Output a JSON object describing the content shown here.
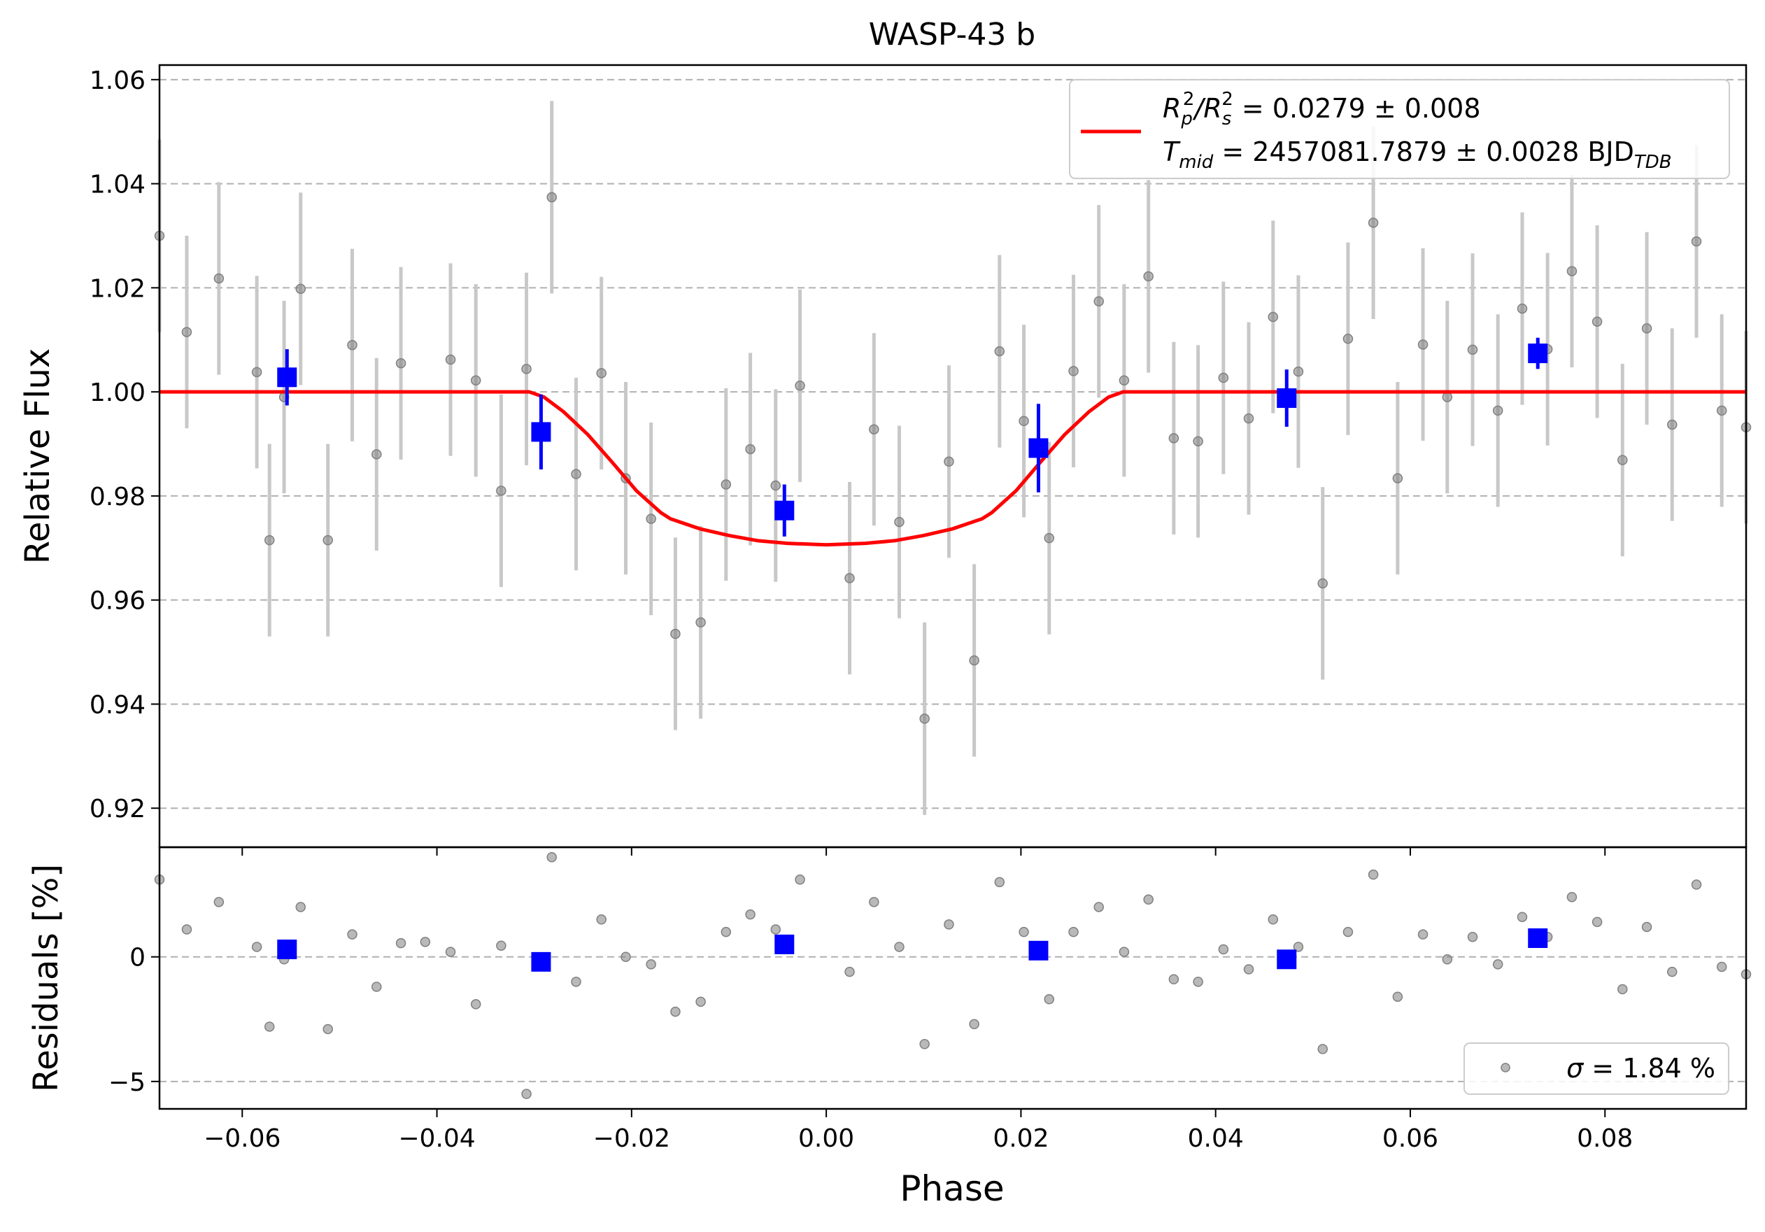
{
  "chart_data": [
    {
      "type": "scatter",
      "panel": "main",
      "title": "WASP-43 b",
      "xlabel": "",
      "ylabel": "Relative Flux",
      "xlim": [
        -0.0685,
        0.0945
      ],
      "ylim": [
        0.9125,
        1.0628
      ],
      "grid": "horizontal dashed",
      "legend_position": "top-right",
      "x_ticks": [
        "−0.06",
        "−0.04",
        "−0.02",
        "0.00",
        "0.02",
        "0.04",
        "0.06",
        "0.08"
      ],
      "x_tick_values": [
        -0.06,
        -0.04,
        -0.02,
        0.0,
        0.02,
        0.04,
        0.06,
        0.08
      ],
      "y_ticks": [
        "0.92",
        "0.94",
        "0.96",
        "0.98",
        "1.00",
        "1.02",
        "1.04",
        "1.06"
      ],
      "y_tick_values": [
        0.92,
        0.94,
        0.96,
        0.98,
        1.0,
        1.02,
        1.04,
        1.06
      ],
      "raw_points": {
        "color": "#808080",
        "error_color": "#c8c8c8",
        "x": [
          -0.0685,
          -0.0657,
          -0.0624,
          -0.0585,
          -0.0572,
          -0.0557,
          -0.054,
          -0.0512,
          -0.0487,
          -0.0462,
          -0.0437,
          -0.0386,
          -0.036,
          -0.0334,
          -0.0308,
          -0.0282,
          -0.0257,
          -0.0231,
          -0.0206,
          -0.018,
          -0.0155,
          -0.0129,
          -0.0103,
          -0.0078,
          -0.0052,
          -0.0027,
          0.0024,
          0.0049,
          0.0075,
          0.0101,
          0.0126,
          0.0152,
          0.0178,
          0.0203,
          0.0229,
          0.0254,
          0.028,
          0.0306,
          0.0331,
          0.0357,
          0.0382,
          0.0408,
          0.0434,
          0.0459,
          0.0485,
          0.051,
          0.0536,
          0.0562,
          0.0587,
          0.0613,
          0.0638,
          0.0664,
          0.069,
          0.0715,
          0.0741,
          0.0766,
          0.0792,
          0.0818,
          0.0843,
          0.0869,
          0.0894,
          0.092,
          0.0945
        ],
        "y": [
          1.03,
          1.0115,
          1.0218,
          1.0038,
          0.9715,
          0.999,
          1.0198,
          0.9715,
          1.009,
          0.988,
          1.0055,
          1.0062,
          1.0022,
          0.981,
          1.0044,
          1.0374,
          0.9842,
          1.0036,
          0.9834,
          0.9756,
          0.9535,
          0.9557,
          0.9822,
          0.989,
          0.982,
          1.0012,
          0.9642,
          0.9928,
          0.975,
          0.9372,
          0.9866,
          0.9484,
          1.0078,
          0.9944,
          0.9719,
          1.004,
          1.0174,
          1.0022,
          1.0222,
          0.9911,
          0.9905,
          1.0027,
          0.9949,
          1.0144,
          1.0039,
          0.9632,
          1.0102,
          1.0325,
          0.9834,
          1.0091,
          0.999,
          1.0081,
          0.9964,
          1.016,
          1.0082,
          1.0232,
          1.0135,
          0.9869,
          1.0122,
          0.9937,
          1.0289,
          0.9964,
          0.9932
        ],
        "yerr": 0.0185
      },
      "binned_points": {
        "color": "#0000ff",
        "x": [
          -0.0554,
          -0.0293,
          -0.0043,
          0.0218,
          0.0473,
          0.0731
        ],
        "y": [
          1.0028,
          0.9923,
          0.9772,
          0.9892,
          0.9988,
          1.0074
        ],
        "yerr": [
          0.0054,
          0.0072,
          0.005,
          0.0085,
          0.0055,
          0.003
        ]
      },
      "model": {
        "color": "#ff0000",
        "x": [
          -0.0685,
          -0.0305,
          -0.029,
          -0.027,
          -0.0245,
          -0.022,
          -0.0195,
          -0.017,
          -0.016,
          -0.013,
          -0.01,
          -0.007,
          -0.004,
          0.0,
          0.004,
          0.007,
          0.01,
          0.013,
          0.016,
          0.017,
          0.0195,
          0.022,
          0.0245,
          0.027,
          0.029,
          0.0305,
          0.0945
        ],
        "y": [
          1.0,
          1.0,
          0.999,
          0.9962,
          0.9918,
          0.9865,
          0.981,
          0.9768,
          0.9756,
          0.9737,
          0.9724,
          0.9714,
          0.9709,
          0.9706,
          0.9709,
          0.9714,
          0.9724,
          0.9737,
          0.9756,
          0.9768,
          0.981,
          0.9865,
          0.9918,
          0.9962,
          0.999,
          1.0,
          1.0
        ]
      },
      "legend": {
        "line1": {
          "pre": "R",
          "sub1": "p",
          "sup1": "2",
          "mid": "/R",
          "sub2": "s",
          "sup2": "2",
          "post": " = 0.0279 ± 0.008"
        },
        "line2": {
          "pre": "T",
          "sub1": "mid",
          "post": " = 2457081.7879 ± 0.0028 BJD",
          "sub2": "TDB"
        }
      }
    },
    {
      "type": "scatter",
      "panel": "residuals",
      "xlabel": "Phase",
      "ylabel": "Residuals [%]",
      "xlim": [
        -0.0685,
        0.0945
      ],
      "ylim": [
        -6.1,
        4.4
      ],
      "grid": "horizontal dashed",
      "legend_position": "bottom-right",
      "x_ticks": [
        "−0.06",
        "−0.04",
        "−0.02",
        "0.00",
        "0.02",
        "0.04",
        "0.06",
        "0.08"
      ],
      "x_tick_values": [
        -0.06,
        -0.04,
        -0.02,
        0.0,
        0.02,
        0.04,
        0.06,
        0.08
      ],
      "y_ticks": [
        "−5",
        "0"
      ],
      "y_tick_values": [
        -5,
        0
      ],
      "raw_points": {
        "color": "#808080",
        "x": [
          -0.0685,
          -0.0657,
          -0.0624,
          -0.0585,
          -0.0572,
          -0.0557,
          -0.054,
          -0.0512,
          -0.0487,
          -0.0462,
          -0.0437,
          -0.0412,
          -0.0386,
          -0.036,
          -0.0334,
          -0.0308,
          -0.0293,
          -0.0282,
          -0.0257,
          -0.0231,
          -0.0206,
          -0.018,
          -0.0155,
          -0.0129,
          -0.0103,
          -0.0078,
          -0.0052,
          -0.0027,
          0.0024,
          0.0049,
          0.0075,
          0.0101,
          0.0126,
          0.0152,
          0.0178,
          0.0203,
          0.0229,
          0.0254,
          0.028,
          0.0306,
          0.0331,
          0.0357,
          0.0382,
          0.0408,
          0.0434,
          0.0459,
          0.0485,
          0.051,
          0.0536,
          0.0562,
          0.0587,
          0.0613,
          0.0638,
          0.0664,
          0.069,
          0.0715,
          0.0741,
          0.0766,
          0.0792,
          0.0818,
          0.0843,
          0.0869,
          0.0894,
          0.092,
          0.0945
        ],
        "y": [
          3.1,
          1.1,
          2.2,
          0.4,
          -2.8,
          -0.1,
          2.0,
          -2.9,
          0.9,
          -1.2,
          0.55,
          0.6,
          0.2,
          -1.9,
          0.45,
          -5.5,
          -0.2,
          4.0,
          -1.0,
          1.5,
          0.0,
          -0.3,
          -2.2,
          -1.8,
          1.0,
          1.7,
          1.1,
          3.1,
          -0.6,
          2.2,
          0.4,
          -3.5,
          1.3,
          -2.7,
          3.0,
          1.0,
          -1.7,
          1.0,
          2.0,
          0.2,
          2.3,
          -0.9,
          -1.0,
          0.3,
          -0.5,
          1.5,
          0.4,
          -3.7,
          1.0,
          3.3,
          -1.6,
          0.9,
          -0.1,
          0.8,
          -0.3,
          1.6,
          0.8,
          2.4,
          1.4,
          -1.3,
          1.2,
          -0.6,
          2.9,
          -0.4,
          -0.7
        ]
      },
      "binned_points": {
        "color": "#0000ff",
        "x": [
          -0.0554,
          -0.0293,
          -0.0043,
          0.0218,
          0.0473,
          0.0731
        ],
        "y": [
          0.3,
          -0.2,
          0.5,
          0.25,
          -0.1,
          0.75
        ]
      },
      "legend": {
        "pre": "σ",
        "post": " = 1.84 %"
      }
    }
  ]
}
